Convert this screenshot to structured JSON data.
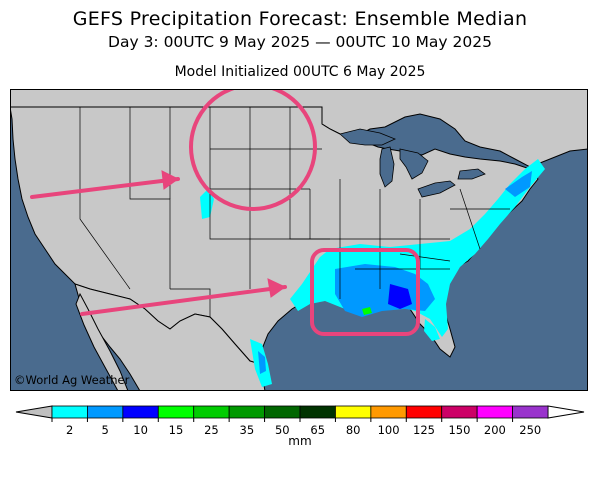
{
  "title": "GEFS Precipitation Forecast: Ensemble Median",
  "subtitle": "Day 3: 00UTC 9 May 2025 — 00UTC 10 May 2025",
  "init": "Model Initialized 00UTC 6 May 2025",
  "credit": "©World Ag Weather",
  "colors": {
    "ocean": "#4a6b8e",
    "land": "#c8c8c8",
    "border": "#000000",
    "annotation": "#e8457c"
  },
  "legend": {
    "unit": "mm",
    "ticks": [
      "2",
      "5",
      "10",
      "15",
      "25",
      "35",
      "50",
      "65",
      "80",
      "100",
      "125",
      "150",
      "200",
      "250"
    ],
    "colors": [
      "#00ffff",
      "#0099ff",
      "#0000ff",
      "#00ff00",
      "#00cc00",
      "#009900",
      "#006600",
      "#003300",
      "#ffff00",
      "#ff9900",
      "#ff0000",
      "#cc0066",
      "#ff00ff",
      "#9933cc"
    ],
    "under_color": "#c0c0c0",
    "over_color": "#ffffff"
  },
  "annotations": [
    {
      "kind": "circle",
      "target": "northern plains"
    },
    {
      "kind": "rounded-box",
      "target": "lower mississippi valley"
    },
    {
      "kind": "arrow",
      "target": "northern plains"
    },
    {
      "kind": "arrow",
      "target": "lower mississippi valley"
    }
  ]
}
